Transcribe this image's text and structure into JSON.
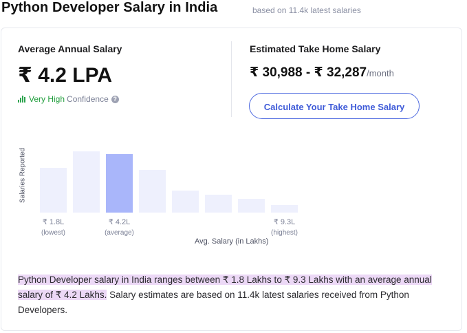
{
  "header": {
    "title": "Python Developer Salary in India",
    "subtitle": "based on 11.4k latest salaries"
  },
  "summary": {
    "avg_label": "Average Annual Salary",
    "avg_value": "₹ 4.2 LPA",
    "confidence_level": "Very High",
    "confidence_text": "Confidence",
    "takehome_label": "Estimated Take Home Salary",
    "takehome_value": "₹ 30,988 - ₹ 32,287",
    "takehome_unit": "/month",
    "calc_button": "Calculate Your Take Home Salary"
  },
  "chart_data": {
    "type": "bar",
    "ylabel": "Salaries Reported",
    "xlabel": "Avg. Salary (in Lakhs)",
    "values": [
      68,
      93,
      89,
      65,
      33,
      27,
      21,
      11
    ],
    "highlight_index": 2,
    "ticks": [
      {
        "index": 0,
        "value": "₹ 1.8L",
        "note": "(lowest)"
      },
      {
        "index": 2,
        "value": "₹ 4.2L",
        "note": "(average)"
      },
      {
        "index": 7,
        "value": "₹ 9.3L",
        "note": "(highest)"
      }
    ],
    "colors": {
      "bar": "#eef0fd",
      "highlight": "#a9b6fa"
    }
  },
  "description": {
    "highlighted": "Python Developer salary in India ranges between ₹ 1.8 Lakhs to ₹ 9.3 Lakhs with an average annual salary of ₹ 4.2 Lakhs.",
    "rest": " Salary estimates are based on 11.4k latest salaries received from Python Developers."
  },
  "colors": {
    "accent": "#3f5bd8",
    "confidence_green": "#1f9d3b",
    "highlight_bg": "#ecd8f6"
  },
  "icons": {
    "confidence": "signal-bars-icon",
    "help": "question-circle-icon"
  }
}
